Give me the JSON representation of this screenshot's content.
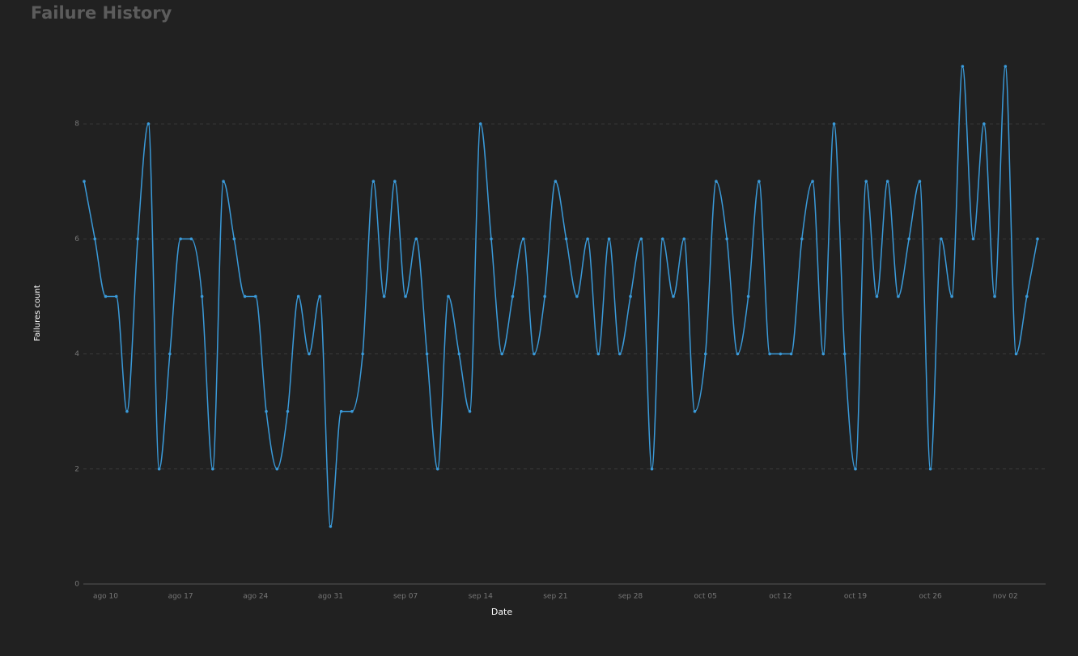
{
  "chart_data": {
    "type": "line",
    "title": "Failure History",
    "x_label": "Date",
    "y_label": "Failures count",
    "x": [
      "ago 08",
      "ago 09",
      "ago 10",
      "ago 11",
      "ago 12",
      "ago 13",
      "ago 14",
      "ago 15",
      "ago 16",
      "ago 17",
      "ago 18",
      "ago 19",
      "ago 20",
      "ago 21",
      "ago 22",
      "ago 23",
      "ago 24",
      "ago 25",
      "ago 26",
      "ago 27",
      "ago 28",
      "ago 29",
      "ago 30",
      "ago 31",
      "sep 01",
      "sep 02",
      "sep 03",
      "sep 04",
      "sep 05",
      "sep 06",
      "sep 07",
      "sep 08",
      "sep 09",
      "sep 10",
      "sep 11",
      "sep 12",
      "sep 13",
      "sep 14",
      "sep 15",
      "sep 16",
      "sep 17",
      "sep 18",
      "sep 19",
      "sep 20",
      "sep 21",
      "sep 22",
      "sep 23",
      "sep 24",
      "sep 25",
      "sep 26",
      "sep 27",
      "sep 28",
      "sep 29",
      "sep 30",
      "oct 01",
      "oct 02",
      "oct 03",
      "oct 04",
      "oct 05",
      "oct 06",
      "oct 07",
      "oct 08",
      "oct 09",
      "oct 10",
      "oct 11",
      "oct 12",
      "oct 13",
      "oct 14",
      "oct 15",
      "oct 16",
      "oct 17",
      "oct 18",
      "oct 19",
      "oct 20",
      "oct 21",
      "oct 22",
      "oct 23",
      "oct 24",
      "oct 25",
      "oct 26",
      "oct 27",
      "oct 28",
      "oct 29",
      "oct 30",
      "oct 31",
      "nov 01",
      "nov 02",
      "nov 03",
      "nov 04",
      "nov 05"
    ],
    "values": [
      7,
      6,
      5,
      5,
      3,
      6,
      8,
      2,
      4,
      6,
      6,
      5,
      2,
      7,
      6,
      5,
      5,
      3,
      2,
      3,
      5,
      4,
      5,
      1,
      3,
      3,
      4,
      7,
      5,
      7,
      5,
      6,
      4,
      2,
      5,
      4,
      3,
      8,
      6,
      4,
      5,
      6,
      4,
      5,
      7,
      6,
      5,
      6,
      4,
      6,
      4,
      5,
      6,
      2,
      6,
      5,
      6,
      3,
      4,
      7,
      6,
      4,
      5,
      7,
      4,
      4,
      4,
      6,
      7,
      4,
      8,
      4,
      2,
      7,
      5,
      7,
      5,
      6,
      7,
      2,
      6,
      5,
      9,
      6,
      8,
      5,
      9,
      4,
      5,
      6
    ],
    "color": "#3a9ad9",
    "xticks": [
      "ago 10",
      "ago 17",
      "ago 24",
      "ago 31",
      "sep 07",
      "sep 14",
      "sep 21",
      "sep 28",
      "oct 05",
      "oct 12",
      "oct 19",
      "oct 26",
      "nov 02"
    ],
    "ylim": [
      0,
      9.3
    ],
    "yticks": [
      0,
      2,
      4,
      6,
      8
    ],
    "grid": true
  }
}
